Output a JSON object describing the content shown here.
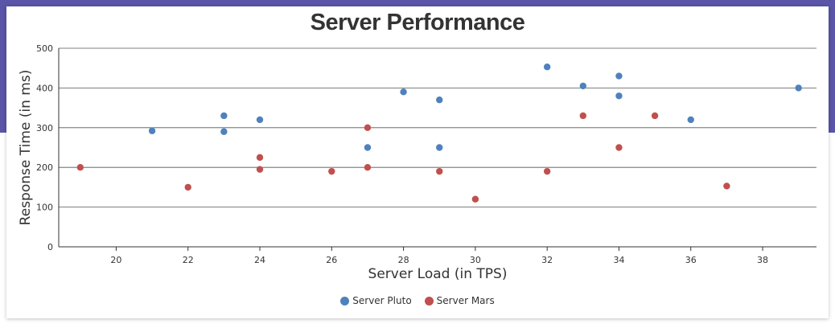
{
  "colors": {
    "background_band": "#5a55a6",
    "pluto": "#4f81bc",
    "mars": "#c0504e"
  },
  "chart_data": {
    "type": "scatter",
    "title": "Server Performance",
    "xlabel": "Server Load (in TPS)",
    "ylabel": "Response Time (in ms)",
    "xlim": [
      18.4,
      39.5
    ],
    "ylim": [
      0,
      500
    ],
    "x_ticks": [
      20,
      22,
      24,
      26,
      28,
      30,
      32,
      34,
      36,
      38
    ],
    "y_ticks": [
      0,
      100,
      200,
      300,
      400,
      500
    ],
    "grid": "horizontal",
    "legend_position": "bottom-center",
    "series": [
      {
        "name": "Server Pluto",
        "color": "#4f81bc",
        "points": [
          {
            "x": 21,
            "y": 292
          },
          {
            "x": 23,
            "y": 330
          },
          {
            "x": 23,
            "y": 290
          },
          {
            "x": 24,
            "y": 320
          },
          {
            "x": 27,
            "y": 250
          },
          {
            "x": 28,
            "y": 390
          },
          {
            "x": 29,
            "y": 370
          },
          {
            "x": 29,
            "y": 250
          },
          {
            "x": 32,
            "y": 453
          },
          {
            "x": 33,
            "y": 405
          },
          {
            "x": 34,
            "y": 430
          },
          {
            "x": 34,
            "y": 380
          },
          {
            "x": 36,
            "y": 320
          },
          {
            "x": 39,
            "y": 400
          }
        ]
      },
      {
        "name": "Server Mars",
        "color": "#c0504e",
        "points": [
          {
            "x": 19,
            "y": 200
          },
          {
            "x": 22,
            "y": 150
          },
          {
            "x": 24,
            "y": 225
          },
          {
            "x": 24,
            "y": 195
          },
          {
            "x": 26,
            "y": 190
          },
          {
            "x": 27,
            "y": 300
          },
          {
            "x": 27,
            "y": 200
          },
          {
            "x": 29,
            "y": 190
          },
          {
            "x": 30,
            "y": 120
          },
          {
            "x": 32,
            "y": 190
          },
          {
            "x": 33,
            "y": 330
          },
          {
            "x": 34,
            "y": 250
          },
          {
            "x": 35,
            "y": 330
          },
          {
            "x": 37,
            "y": 153
          }
        ]
      }
    ]
  }
}
